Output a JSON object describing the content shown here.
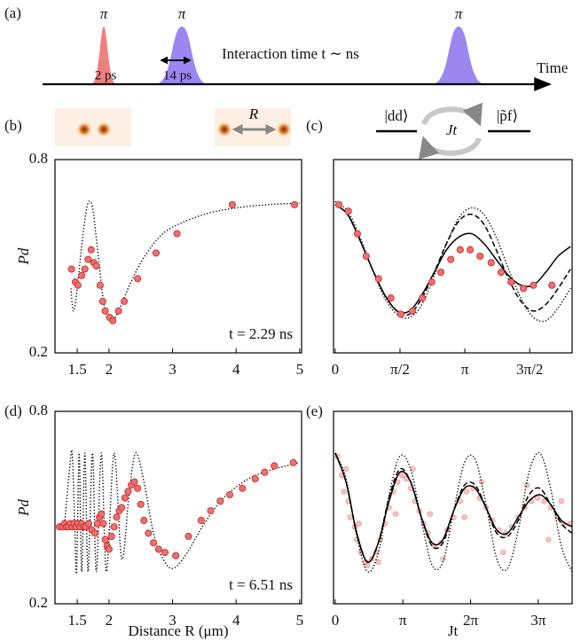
{
  "schematic": {
    "label": "(a)",
    "pi": [
      "π",
      "π",
      "π"
    ],
    "pulse_widths": [
      "2 ps",
      "14 ps"
    ],
    "text": "Interaction time t ∼ ns",
    "axis_label": "Time"
  },
  "images": {
    "label": "(b)",
    "distance_label": "R"
  },
  "levels": {
    "label": "(c)",
    "left": "|dd⟩",
    "right": "|p̃f⟩",
    "coupling": "Jt"
  },
  "chart_data": [
    {
      "type": "scatter",
      "ylabel": "Pd",
      "annotation": "t = 2.29 ns",
      "xlim": [
        1.15,
        5.03
      ],
      "ylim": [
        0.2,
        0.8
      ],
      "xticks": [
        1.5,
        2,
        3,
        4,
        5
      ],
      "yticks": [
        0.2,
        0.8
      ],
      "series": [
        {
          "style": "dotted",
          "color": "#000000",
          "x": [
            1.4,
            1.44,
            1.5,
            1.58,
            1.65,
            1.7,
            1.75,
            1.82,
            1.9,
            1.97,
            2.05,
            2.15,
            2.3,
            2.5,
            2.75,
            3.0,
            3.5,
            4.0,
            4.5,
            5.0
          ],
          "values": [
            0.4,
            0.33,
            0.4,
            0.55,
            0.65,
            0.67,
            0.64,
            0.52,
            0.38,
            0.31,
            0.3,
            0.33,
            0.4,
            0.48,
            0.55,
            0.59,
            0.63,
            0.65,
            0.66,
            0.665
          ]
        },
        {
          "style": "markers",
          "color": "#f07070",
          "edgecolor": "#c03030",
          "x": [
            1.41,
            1.47,
            1.51,
            1.57,
            1.62,
            1.67,
            1.72,
            1.76,
            1.8,
            1.86,
            1.9,
            1.94,
            2.01,
            2.06,
            2.15,
            2.24,
            2.45,
            2.74,
            3.07,
            3.94,
            4.92
          ],
          "values": [
            0.46,
            0.42,
            0.41,
            0.44,
            0.46,
            0.49,
            0.52,
            0.48,
            0.47,
            0.41,
            0.36,
            0.33,
            0.31,
            0.3,
            0.33,
            0.36,
            0.43,
            0.51,
            0.57,
            0.66,
            0.66
          ]
        }
      ]
    },
    {
      "type": "scatter",
      "xlim": [
        -0.04,
        5.74
      ],
      "ylim": [
        0.2,
        0.8
      ],
      "xticks": [
        0,
        {
          "value": 1.5708,
          "label": "π/2"
        },
        {
          "value": 3.1416,
          "label": "π"
        },
        {
          "value": 4.7124,
          "label": "3π/2"
        }
      ],
      "series": [
        {
          "style": "solid",
          "color": "#000000",
          "x": [
            0,
            0.3,
            0.6,
            0.9,
            1.2,
            1.5,
            1.8,
            2.1,
            2.4,
            2.7,
            3.0,
            3.3,
            3.6,
            3.9,
            4.2,
            4.5,
            4.8,
            5.1,
            5.4,
            5.7
          ],
          "values": [
            0.66,
            0.63,
            0.55,
            0.46,
            0.38,
            0.33,
            0.33,
            0.38,
            0.45,
            0.52,
            0.56,
            0.57,
            0.54,
            0.49,
            0.44,
            0.41,
            0.41,
            0.45,
            0.5,
            0.53
          ]
        },
        {
          "style": "dashed",
          "color": "#000000",
          "x": [
            0,
            0.3,
            0.6,
            0.9,
            1.2,
            1.5,
            1.8,
            2.1,
            2.4,
            2.7,
            3.0,
            3.3,
            3.6,
            3.9,
            4.2,
            4.5,
            4.8,
            5.1,
            5.4,
            5.7
          ],
          "values": [
            0.66,
            0.63,
            0.55,
            0.46,
            0.38,
            0.33,
            0.32,
            0.37,
            0.45,
            0.54,
            0.61,
            0.63,
            0.6,
            0.52,
            0.43,
            0.36,
            0.33,
            0.35,
            0.4,
            0.46
          ]
        },
        {
          "style": "dotted",
          "color": "#000000",
          "x": [
            0,
            0.3,
            0.6,
            0.9,
            1.2,
            1.5,
            1.8,
            2.1,
            2.4,
            2.7,
            3.0,
            3.3,
            3.6,
            3.9,
            4.2,
            4.5,
            4.8,
            5.1,
            5.4,
            5.7
          ],
          "values": [
            0.67,
            0.64,
            0.56,
            0.46,
            0.37,
            0.32,
            0.31,
            0.35,
            0.44,
            0.54,
            0.62,
            0.65,
            0.63,
            0.56,
            0.46,
            0.37,
            0.31,
            0.3,
            0.34,
            0.4
          ]
        },
        {
          "style": "markers",
          "color": "#f07070",
          "edgecolor": "#c03030",
          "x": [
            0.09,
            0.32,
            0.54,
            0.75,
            1.05,
            1.35,
            1.59,
            1.87,
            2.11,
            2.34,
            2.56,
            2.8,
            3.03,
            3.27,
            3.51,
            3.78,
            4.02,
            4.26,
            4.56,
            4.8,
            5.25
          ],
          "values": [
            0.66,
            0.64,
            0.57,
            0.5,
            0.43,
            0.37,
            0.32,
            0.33,
            0.37,
            0.42,
            0.45,
            0.49,
            0.52,
            0.52,
            0.5,
            0.48,
            0.45,
            0.42,
            0.4,
            0.41,
            0.41
          ]
        }
      ]
    },
    {
      "type": "scatter",
      "ylabel": "Pd",
      "xlabel": "Distance R (μm)",
      "annotation": "t = 6.51 ns",
      "xlim": [
        1.15,
        5.03
      ],
      "ylim": [
        0.2,
        0.8
      ],
      "xticks": [
        1.5,
        2,
        3,
        4,
        5
      ],
      "yticks": [
        0.2,
        0.8
      ],
      "series": [
        {
          "style": "dotted",
          "color": "#000000",
          "x": [
            1.3,
            1.38,
            1.42,
            1.46,
            1.49,
            1.53,
            1.57,
            1.62,
            1.67,
            1.74,
            1.8,
            1.88,
            1.96,
            2.08,
            2.2,
            2.32,
            2.42,
            2.55,
            2.7,
            2.85,
            3.0,
            3.2,
            3.5,
            3.8,
            4.2,
            4.6,
            5.0
          ],
          "values": [
            0.45,
            0.62,
            0.67,
            0.45,
            0.3,
            0.67,
            0.3,
            0.67,
            0.3,
            0.67,
            0.3,
            0.67,
            0.3,
            0.67,
            0.34,
            0.55,
            0.67,
            0.58,
            0.42,
            0.34,
            0.31,
            0.35,
            0.45,
            0.53,
            0.59,
            0.62,
            0.64
          ]
        },
        {
          "style": "markers",
          "color": "#f07070",
          "edgecolor": "#c03030",
          "x": [
            1.22,
            1.27,
            1.3,
            1.33,
            1.36,
            1.39,
            1.42,
            1.45,
            1.48,
            1.51,
            1.54,
            1.57,
            1.6,
            1.63,
            1.68,
            1.73,
            1.78,
            1.82,
            1.85,
            1.88,
            1.91,
            1.94,
            1.97,
            2.0,
            2.04,
            2.08,
            2.12,
            2.16,
            2.2,
            2.25,
            2.3,
            2.35,
            2.4,
            2.45,
            2.5,
            2.55,
            2.62,
            2.7,
            2.78,
            2.88,
            3.05,
            3.25,
            3.45,
            3.6,
            3.75,
            3.9,
            4.1,
            4.3,
            4.45,
            4.6,
            4.9
          ],
          "values": [
            0.44,
            0.44,
            0.45,
            0.44,
            0.44,
            0.45,
            0.44,
            0.45,
            0.44,
            0.45,
            0.44,
            0.45,
            0.44,
            0.44,
            0.45,
            0.43,
            0.42,
            0.45,
            0.47,
            0.48,
            0.45,
            0.4,
            0.38,
            0.37,
            0.41,
            0.44,
            0.47,
            0.49,
            0.5,
            0.53,
            0.55,
            0.57,
            0.58,
            0.56,
            0.51,
            0.46,
            0.42,
            0.39,
            0.37,
            0.36,
            0.35,
            0.41,
            0.46,
            0.49,
            0.52,
            0.54,
            0.56,
            0.59,
            0.61,
            0.63,
            0.64
          ]
        }
      ]
    },
    {
      "type": "scatter",
      "xlabel": "Jt",
      "xlim": [
        -0.08,
        11.0
      ],
      "ylim": [
        0.2,
        0.8
      ],
      "xticks": [
        0,
        {
          "value": 3.1416,
          "label": "π"
        },
        {
          "value": 6.2832,
          "label": "2π"
        },
        {
          "value": 9.4248,
          "label": "3π"
        }
      ],
      "series": [
        {
          "style": "markers",
          "color": "#f07070",
          "edgecolor": "#d04040",
          "opacity": 0.4,
          "x": [
            0.1,
            0.3,
            0.4,
            0.6,
            0.7,
            0.9,
            1.0,
            1.2,
            1.4,
            1.5,
            1.7,
            1.9,
            2.1,
            2.3,
            2.5,
            2.7,
            2.9,
            3.1,
            3.3,
            3.5,
            3.7,
            3.9,
            4.1,
            4.3,
            4.6,
            4.9,
            5.2,
            5.5,
            5.8,
            6.1,
            6.4,
            6.7,
            7.0,
            7.3,
            7.6,
            7.9,
            8.2,
            8.5,
            8.8,
            9.1,
            9.4,
            9.7,
            10.0,
            10.3,
            10.6,
            10.9,
            0.5,
            1.1,
            2.0,
            2.8,
            3.6,
            4.4,
            5.0,
            6.0,
            6.8,
            7.8,
            8.9,
            9.9,
            10.5
          ],
          "values": [
            0.66,
            0.6,
            0.55,
            0.52,
            0.47,
            0.44,
            0.4,
            0.36,
            0.33,
            0.32,
            0.34,
            0.36,
            0.4,
            0.45,
            0.5,
            0.55,
            0.58,
            0.6,
            0.59,
            0.56,
            0.52,
            0.49,
            0.45,
            0.42,
            0.38,
            0.39,
            0.43,
            0.47,
            0.52,
            0.55,
            0.56,
            0.53,
            0.5,
            0.46,
            0.43,
            0.42,
            0.44,
            0.47,
            0.5,
            0.52,
            0.53,
            0.52,
            0.5,
            0.47,
            0.45,
            0.45,
            0.62,
            0.45,
            0.33,
            0.48,
            0.62,
            0.48,
            0.34,
            0.47,
            0.58,
            0.36,
            0.57,
            0.4,
            0.52
          ]
        },
        {
          "style": "solid",
          "color": "#000000",
          "x": [
            0,
            0.5,
            1,
            1.5,
            2,
            2.5,
            3,
            3.5,
            4,
            4.5,
            5,
            5.5,
            6,
            6.5,
            7,
            7.5,
            8,
            8.5,
            9,
            9.5,
            10,
            10.5,
            11
          ],
          "values": [
            0.67,
            0.58,
            0.42,
            0.33,
            0.39,
            0.52,
            0.61,
            0.58,
            0.47,
            0.39,
            0.4,
            0.49,
            0.56,
            0.56,
            0.5,
            0.43,
            0.42,
            0.47,
            0.52,
            0.54,
            0.51,
            0.46,
            0.44
          ]
        },
        {
          "style": "dashed",
          "color": "#000000",
          "x": [
            0,
            0.5,
            1,
            1.5,
            2,
            2.5,
            3,
            3.5,
            4,
            4.5,
            5,
            5.5,
            6,
            6.5,
            7,
            7.5,
            8,
            8.5,
            9,
            9.5,
            10,
            10.5,
            11
          ],
          "values": [
            0.67,
            0.58,
            0.42,
            0.33,
            0.39,
            0.53,
            0.62,
            0.58,
            0.47,
            0.38,
            0.39,
            0.49,
            0.57,
            0.57,
            0.5,
            0.42,
            0.41,
            0.46,
            0.54,
            0.56,
            0.51,
            0.45,
            0.42
          ]
        },
        {
          "style": "dotted",
          "color": "#000000",
          "x": [
            0,
            0.5,
            1,
            1.5,
            2,
            2.5,
            3,
            3.5,
            4,
            4.5,
            5,
            5.5,
            6,
            6.5,
            7,
            7.5,
            8,
            8.5,
            9,
            9.5,
            10,
            10.5,
            11
          ],
          "values": [
            0.67,
            0.59,
            0.41,
            0.3,
            0.36,
            0.54,
            0.66,
            0.62,
            0.46,
            0.32,
            0.33,
            0.49,
            0.64,
            0.65,
            0.51,
            0.34,
            0.31,
            0.43,
            0.61,
            0.67,
            0.56,
            0.38,
            0.3
          ]
        }
      ]
    }
  ]
}
